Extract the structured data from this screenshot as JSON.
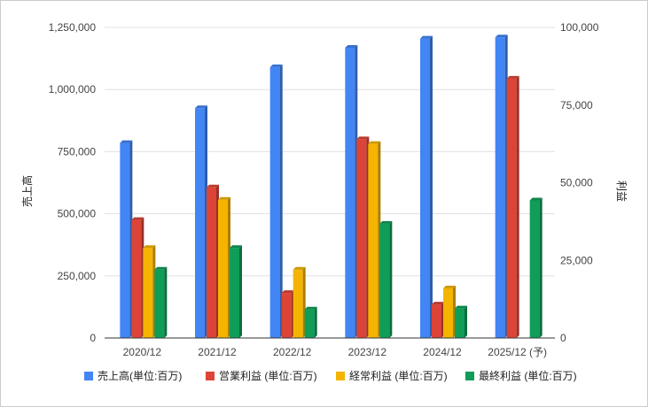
{
  "chart_data": {
    "type": "bar",
    "categories": [
      "2020/12",
      "2021/12",
      "2022/12",
      "2023/12",
      "2024/12",
      "2025/12 (予)"
    ],
    "left_axis": {
      "label": "売上高",
      "ylim": [
        0,
        1250000
      ],
      "ticks": [
        0,
        250000,
        500000,
        750000,
        1000000,
        1250000
      ],
      "tick_labels": [
        "0",
        "250,000",
        "500,000",
        "750,000",
        "1,000,000",
        "1,250,000"
      ]
    },
    "right_axis": {
      "label": "利益",
      "ylim": [
        0,
        100000
      ],
      "ticks": [
        0,
        25000,
        50000,
        75000,
        100000
      ],
      "tick_labels": [
        "0",
        "25,000",
        "50,000",
        "75,000",
        "100,000"
      ]
    },
    "series": [
      {
        "name": "売上高(単位:百万)",
        "axis": "left",
        "color": "#4285f4",
        "values": [
          785000,
          925000,
          1090000,
          1168000,
          1205000,
          1210000
        ]
      },
      {
        "name": "営業利益 (単位:百万)",
        "axis": "right",
        "color": "#db4437",
        "values": [
          38000,
          48500,
          14500,
          64000,
          10800,
          83500
        ]
      },
      {
        "name": "経常利益 (単位:百万)",
        "axis": "right",
        "color": "#f4b400",
        "values": [
          29000,
          44500,
          22000,
          62500,
          16000,
          null
        ]
      },
      {
        "name": "最終利益 (単位:百万)",
        "axis": "right",
        "color": "#0f9d58",
        "values": [
          22000,
          29000,
          9200,
          36800,
          9500,
          44300
        ]
      }
    ],
    "grid": true,
    "legend_position": "bottom"
  }
}
